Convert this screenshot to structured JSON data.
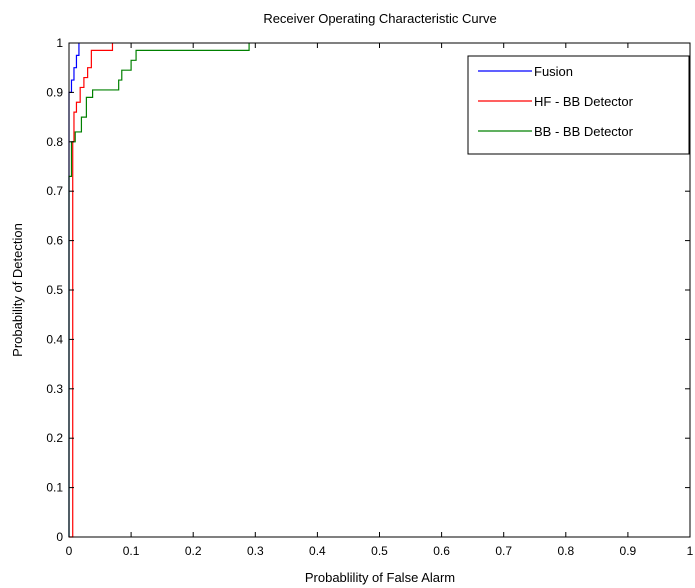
{
  "chart_data": {
    "type": "line",
    "title": "Receiver Operating Characteristic Curve",
    "xlabel": "Probablility of False Alarm",
    "ylabel": "Probability of Detection",
    "xlim": [
      0,
      1
    ],
    "ylim": [
      0,
      1
    ],
    "x_ticks": [
      "0",
      "0.1",
      "0.2",
      "0.3",
      "0.4",
      "0.5",
      "0.6",
      "0.7",
      "0.8",
      "0.9",
      "1"
    ],
    "y_ticks": [
      "0",
      "0.1",
      "0.2",
      "0.3",
      "0.4",
      "0.5",
      "0.6",
      "0.7",
      "0.8",
      "0.9",
      "1"
    ],
    "grid": false,
    "legend_position": "top-right",
    "series": [
      {
        "name": "Fusion",
        "color": "#0000ff",
        "x": [
          0,
          0,
          0.004,
          0.004,
          0.008,
          0.008,
          0.012,
          0.012,
          0.016,
          0.016
        ],
        "y": [
          0,
          0.9,
          0.9,
          0.925,
          0.925,
          0.95,
          0.95,
          0.975,
          0.975,
          1.0
        ]
      },
      {
        "name": "HF - BB Detector",
        "color": "#ff0000",
        "x": [
          0,
          0.006,
          0.006,
          0.008,
          0.008,
          0.012,
          0.012,
          0.018,
          0.018,
          0.024,
          0.024,
          0.03,
          0.03,
          0.036,
          0.036,
          0.07,
          0.07
        ],
        "y": [
          0,
          0,
          0.8,
          0.8,
          0.86,
          0.86,
          0.88,
          0.88,
          0.91,
          0.91,
          0.93,
          0.93,
          0.95,
          0.95,
          0.985,
          0.985,
          1.0
        ]
      },
      {
        "name": "BB - BB Detector",
        "color": "#008000",
        "x": [
          0,
          0,
          0.004,
          0.004,
          0.01,
          0.01,
          0.02,
          0.02,
          0.028,
          0.028,
          0.038,
          0.038,
          0.08,
          0.08,
          0.085,
          0.085,
          0.1,
          0.1,
          0.108,
          0.108,
          0.13,
          0.13,
          0.29,
          0.29
        ],
        "y": [
          0,
          0.73,
          0.73,
          0.8,
          0.8,
          0.82,
          0.82,
          0.85,
          0.85,
          0.89,
          0.89,
          0.905,
          0.905,
          0.925,
          0.925,
          0.945,
          0.945,
          0.965,
          0.965,
          0.985,
          0.985,
          0.985,
          0.985,
          1.0
        ]
      }
    ]
  }
}
